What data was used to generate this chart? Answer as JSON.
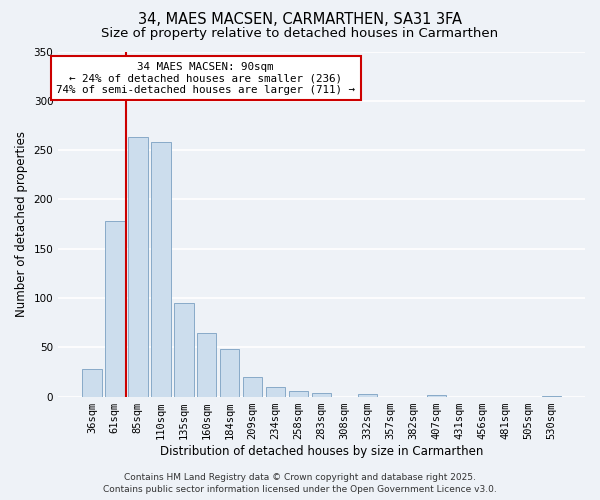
{
  "title": "34, MAES MACSEN, CARMARTHEN, SA31 3FA",
  "subtitle": "Size of property relative to detached houses in Carmarthen",
  "xlabel": "Distribution of detached houses by size in Carmarthen",
  "ylabel": "Number of detached properties",
  "bar_labels": [
    "36sqm",
    "61sqm",
    "85sqm",
    "110sqm",
    "135sqm",
    "160sqm",
    "184sqm",
    "209sqm",
    "234sqm",
    "258sqm",
    "283sqm",
    "308sqm",
    "332sqm",
    "357sqm",
    "382sqm",
    "407sqm",
    "431sqm",
    "456sqm",
    "481sqm",
    "505sqm",
    "530sqm"
  ],
  "bar_values": [
    28,
    178,
    263,
    258,
    95,
    64,
    48,
    20,
    10,
    6,
    4,
    0,
    3,
    0,
    0,
    2,
    0,
    0,
    0,
    0,
    1
  ],
  "bar_color": "#ccdded",
  "bar_edgecolor": "#88aac8",
  "ylim": [
    0,
    350
  ],
  "yticks": [
    0,
    50,
    100,
    150,
    200,
    250,
    300,
    350
  ],
  "vline_color": "#cc0000",
  "annotation_title": "34 MAES MACSEN: 90sqm",
  "annotation_line2": "← 24% of detached houses are smaller (236)",
  "annotation_line3": "74% of semi-detached houses are larger (711) →",
  "annotation_box_facecolor": "#ffffff",
  "annotation_box_edgecolor": "#cc0000",
  "footer1": "Contains HM Land Registry data © Crown copyright and database right 2025.",
  "footer2": "Contains public sector information licensed under the Open Government Licence v3.0.",
  "background_color": "#eef2f7",
  "plot_background_color": "#eef2f7",
  "grid_color": "#ffffff",
  "title_fontsize": 10.5,
  "subtitle_fontsize": 9.5,
  "xlabel_fontsize": 8.5,
  "ylabel_fontsize": 8.5,
  "tick_fontsize": 7.5,
  "annotation_fontsize": 7.8,
  "footer_fontsize": 6.5
}
